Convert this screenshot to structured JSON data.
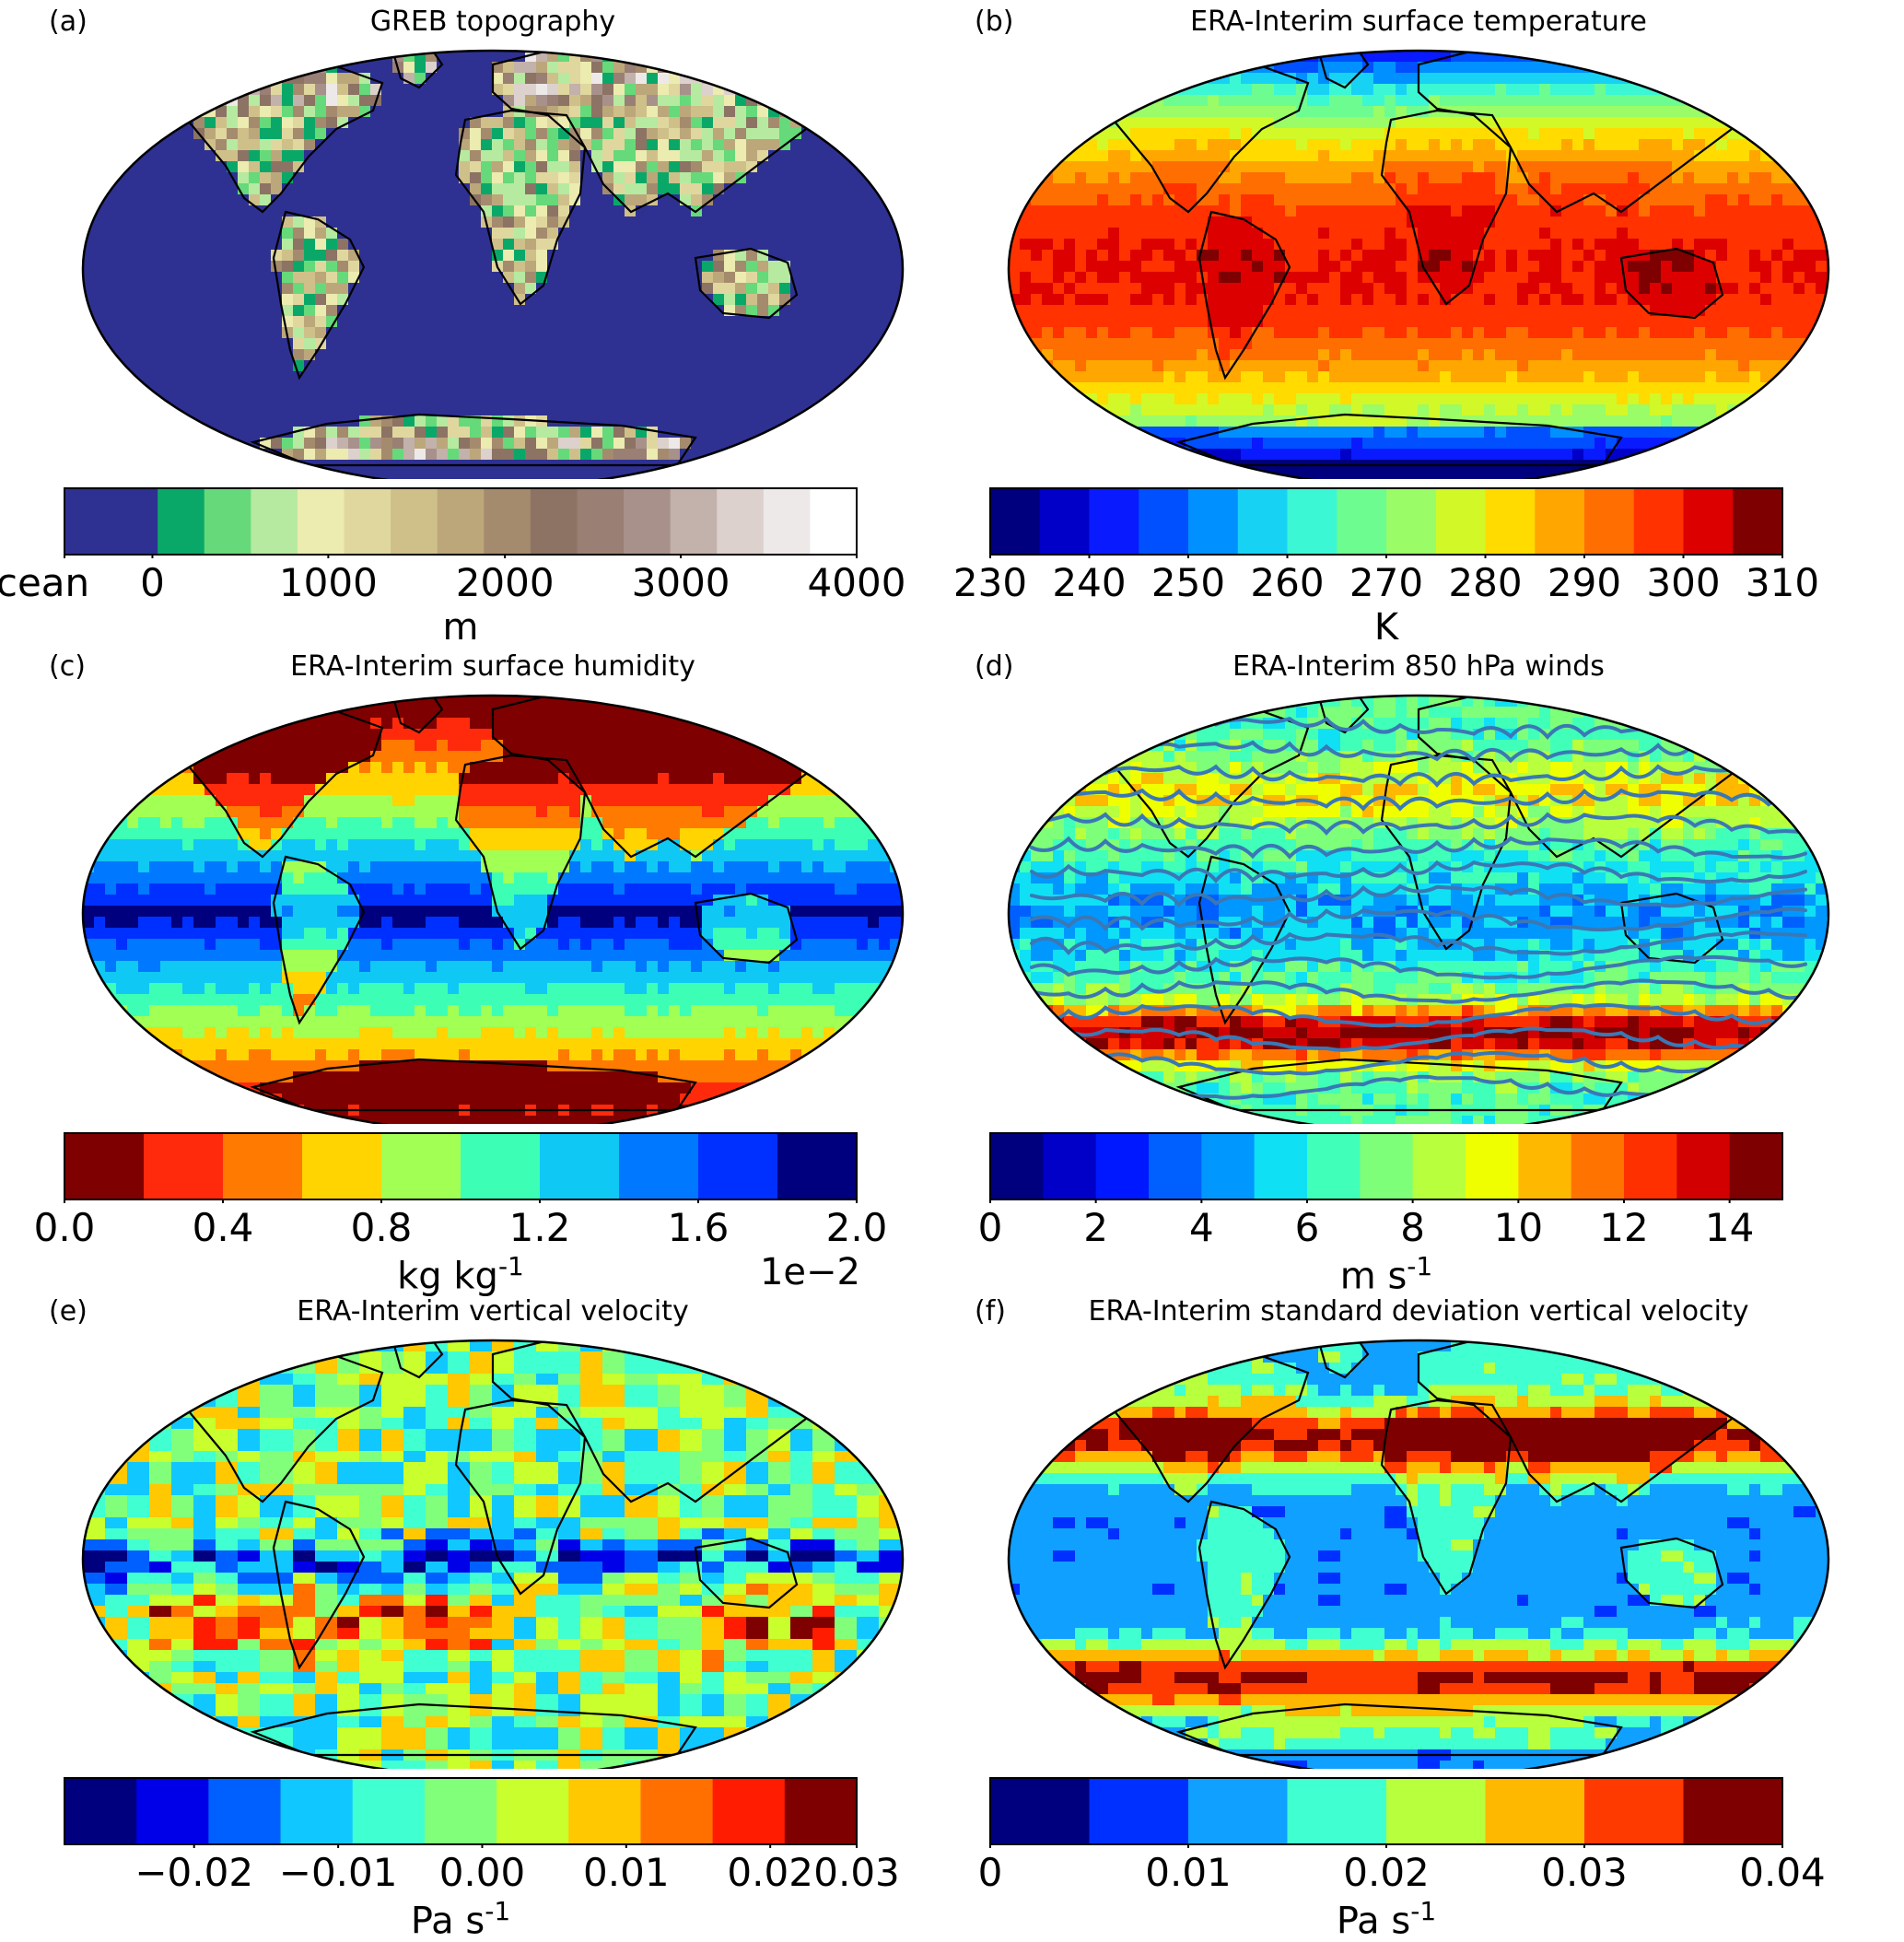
{
  "panels": [
    {
      "letter": "(a)",
      "title": "GREB topography",
      "palette": [
        "#2e3192",
        "#2e3192",
        "#0aa868",
        "#66d97a",
        "#b6eaa0",
        "#ecebb0",
        "#e0d79f",
        "#cfc08a",
        "#bca77b",
        "#a58b6d",
        "#8c7364",
        "#9a7f74",
        "#a8918a",
        "#c3b1ab",
        "#dcd1cd",
        "#ede9e8",
        "#ffffff"
      ],
      "ticks": [
        "Ocean",
        "0",
        "1000",
        "2000",
        "3000",
        "4000"
      ],
      "tick_positions": [
        0.0,
        0.111,
        0.333,
        0.556,
        0.778,
        1.0
      ],
      "unit": "m",
      "unit_sup": "",
      "multiplier": ""
    },
    {
      "letter": "(b)",
      "title": "ERA-Interim surface temperature",
      "palette": [
        "#00007f",
        "#0000c8",
        "#0a1aff",
        "#0050ff",
        "#0090ff",
        "#18d2f4",
        "#3cf7d4",
        "#6dfc90",
        "#9afc66",
        "#d2f827",
        "#ffdb00",
        "#ffa600",
        "#ff6e00",
        "#ff3200",
        "#dc0000",
        "#7f0000"
      ],
      "ticks": [
        "230",
        "240",
        "250",
        "260",
        "270",
        "280",
        "290",
        "300",
        "310"
      ],
      "tick_positions": [
        0.0,
        0.125,
        0.25,
        0.375,
        0.5,
        0.625,
        0.75,
        0.875,
        1.0
      ],
      "unit": "K",
      "unit_sup": "",
      "multiplier": ""
    },
    {
      "letter": "(c)",
      "title": "ERA-Interim surface humidity",
      "palette": [
        "#7f0000",
        "#ff2a0c",
        "#ff7a00",
        "#ffd400",
        "#a2ff54",
        "#3cffb5",
        "#10c8f4",
        "#0078ff",
        "#0030ff",
        "#00007f"
      ],
      "ticks": [
        "0.0",
        "0.4",
        "0.8",
        "1.2",
        "1.6",
        "2.0"
      ],
      "tick_positions": [
        0.0,
        0.2,
        0.4,
        0.6,
        0.8,
        1.0
      ],
      "unit": "kg kg",
      "unit_sup": "-1",
      "multiplier": "1e−2"
    },
    {
      "letter": "(d)",
      "title": "ERA-Interim 850 hPa winds",
      "palette": [
        "#00007f",
        "#0000c8",
        "#0018ff",
        "#0060ff",
        "#0098ff",
        "#10e0f4",
        "#40ffb8",
        "#7dff7a",
        "#b8ff3d",
        "#f0ff00",
        "#ffb800",
        "#ff7400",
        "#ff3000",
        "#d20000",
        "#7f0000"
      ],
      "ticks": [
        "0",
        "2",
        "4",
        "6",
        "8",
        "10",
        "12",
        "14"
      ],
      "tick_positions": [
        0.0,
        0.1333,
        0.2667,
        0.4,
        0.5333,
        0.6667,
        0.8,
        0.9333
      ],
      "unit": "m s",
      "unit_sup": "-1",
      "multiplier": ""
    },
    {
      "letter": "(e)",
      "title": "ERA-Interim vertical velocity",
      "palette": [
        "#00007f",
        "#0000e8",
        "#0060ff",
        "#10c8ff",
        "#40ffd0",
        "#82ff7a",
        "#c8ff2c",
        "#ffc800",
        "#ff7000",
        "#ff1c00",
        "#7f0000"
      ],
      "ticks": [
        "−0.02",
        "−0.01",
        "0.00",
        "0.01",
        "0.02",
        "0.03"
      ],
      "tick_positions": [
        0.1636,
        0.3455,
        0.5273,
        0.7091,
        0.8909,
        1.0
      ],
      "unit": "Pa s",
      "unit_sup": "-1",
      "multiplier": ""
    },
    {
      "letter": "(f)",
      "title": "ERA-Interim standard deviation vertical velocity",
      "palette": [
        "#00007f",
        "#0030ff",
        "#10a0ff",
        "#40ffd0",
        "#b8ff3d",
        "#ffb800",
        "#ff3a00",
        "#7f0000"
      ],
      "ticks": [
        "0",
        "0.01",
        "0.02",
        "0.03",
        "0.04"
      ],
      "tick_positions": [
        0.0,
        0.25,
        0.5,
        0.75,
        1.0
      ],
      "unit": "Pa s",
      "unit_sup": "-1",
      "multiplier": ""
    }
  ]
}
